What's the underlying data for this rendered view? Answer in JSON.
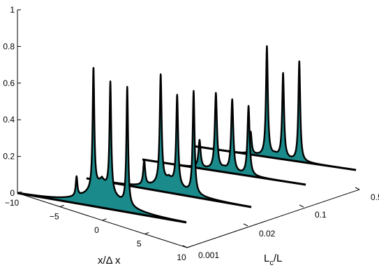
{
  "chart_data": {
    "type": "area",
    "title": "",
    "xlabel": "x/Δ x",
    "ylabel_main": "L",
    "ylabel_sub": "c",
    "ylabel_tail": "/L",
    "zlabel": "",
    "x_ticks": [
      "−10",
      "−5",
      "0",
      "5",
      "10"
    ],
    "x_tick_values": [
      -10,
      -5,
      0,
      5,
      10
    ],
    "xlim": [
      -10,
      10
    ],
    "z_ticks": [
      "0",
      "0.2",
      "0.4",
      "0.6",
      "0.8",
      "1"
    ],
    "z_tick_values": [
      0,
      0.2,
      0.4,
      0.6,
      0.8,
      1
    ],
    "zlim": [
      0,
      1
    ],
    "fill_color": "#1a8a8a",
    "grid": false,
    "series": [
      {
        "name": "0.001",
        "peak_positions": [
          -3,
          -1,
          1,
          3
        ],
        "peak_heights": [
          0.14,
          0.88,
          0.79,
          0.85
        ],
        "peak_width": 0.12,
        "baseline_decay": 0.45,
        "baseline_amp": 0.2
      },
      {
        "name": "0.02",
        "peak_positions": [
          -3,
          -1,
          1,
          3
        ],
        "peak_heights": [
          0.18,
          0.78,
          0.65,
          0.74
        ],
        "peak_width": 0.14,
        "baseline_decay": 0.5,
        "baseline_amp": 0.1
      },
      {
        "name": "0.1",
        "peak_positions": [
          -3,
          -1,
          1,
          3
        ],
        "peak_heights": [
          0.2,
          0.55,
          0.52,
          0.5
        ],
        "peak_width": 0.16,
        "baseline_decay": 0.9,
        "baseline_amp": 0.02
      },
      {
        "name": "0.5",
        "peak_positions": [
          -3,
          -1,
          1,
          3
        ],
        "peak_heights": [
          0.16,
          0.79,
          0.61,
          0.72
        ],
        "peak_width": 0.14,
        "baseline_decay": 1.2,
        "baseline_amp": 0.02
      }
    ]
  }
}
